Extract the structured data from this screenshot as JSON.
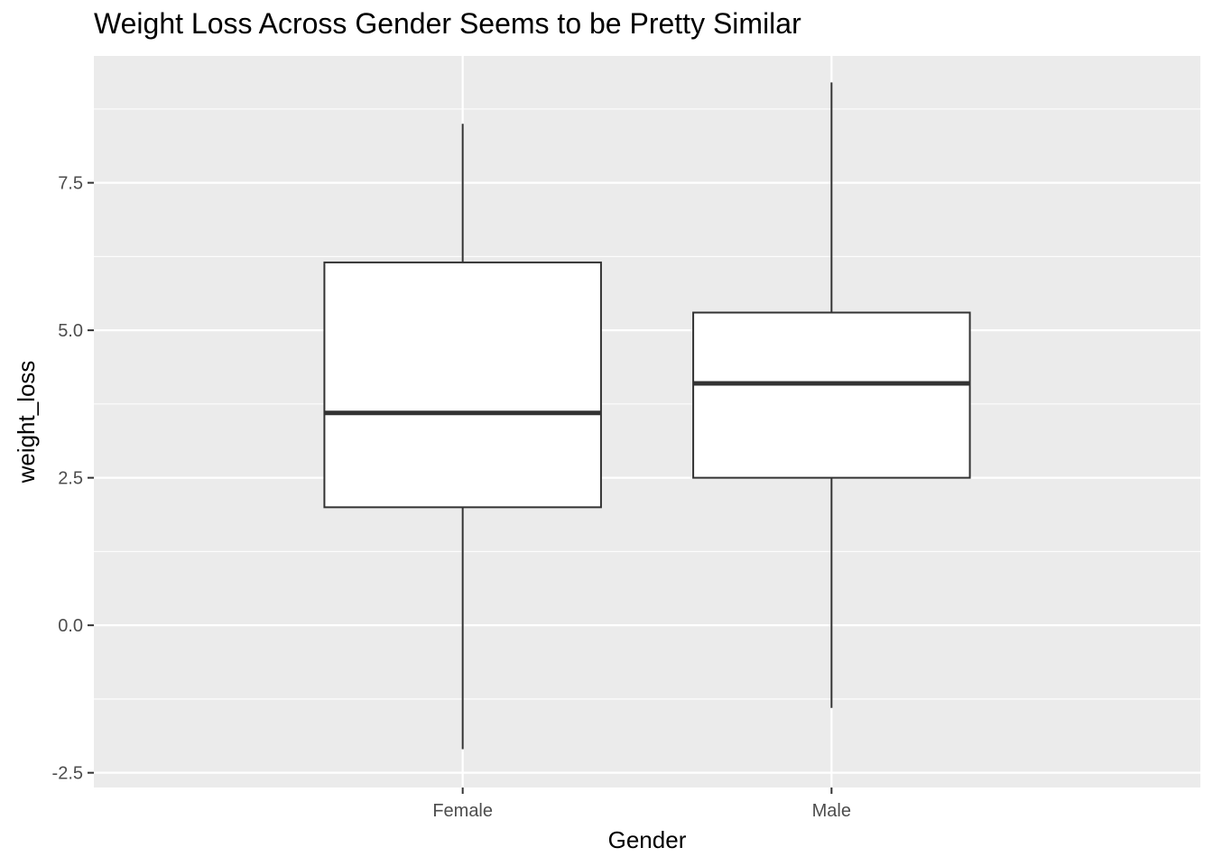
{
  "chart_data": {
    "type": "boxplot",
    "title": "Weight Loss Across Gender Seems to be Pretty Similar",
    "xlabel": "Gender",
    "ylabel": "weight_loss",
    "categories": [
      "Female",
      "Male"
    ],
    "boxes": [
      {
        "category": "Female",
        "whisker_low": -2.1,
        "q1": 2.0,
        "median": 3.6,
        "q3": 6.15,
        "whisker_high": 8.5
      },
      {
        "category": "Male",
        "whisker_low": -1.4,
        "q1": 2.5,
        "median": 4.1,
        "q3": 5.3,
        "whisker_high": 9.2
      }
    ],
    "yticks": [
      -2.5,
      0.0,
      2.5,
      5.0,
      7.5
    ],
    "ytick_labels": [
      "-2.5",
      "0.0",
      "2.5",
      "5.0",
      "7.5"
    ],
    "ylim": [
      -2.75,
      9.65
    ],
    "grid": true,
    "colors": {
      "panel_background": "#ebebeb",
      "grid_line": "#ffffff",
      "box_fill": "#ffffff",
      "box_stroke": "#333333",
      "tick_text": "#4d4d4d"
    }
  }
}
